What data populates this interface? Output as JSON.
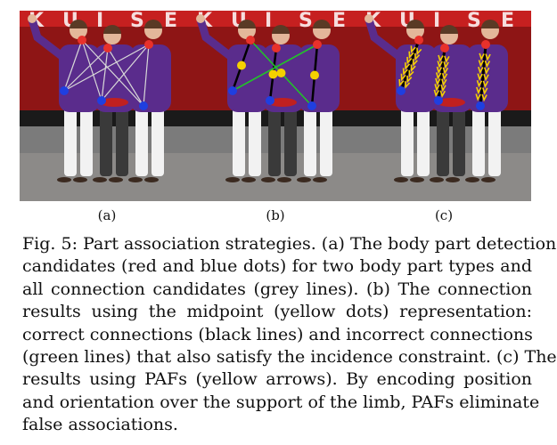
{
  "figure": {
    "panels": [
      {
        "label": "(a)",
        "mode": "all-candidates"
      },
      {
        "label": "(b)",
        "mode": "midpoint"
      },
      {
        "label": "(c)",
        "mode": "paf"
      }
    ],
    "colors": {
      "red_dot": "#e8312b",
      "blue_dot": "#1f3fe0",
      "yellow": "#f5d000",
      "grey_line": "#d8d8d8",
      "green_line": "#22c22a",
      "black_line": "#000000",
      "background_red": "#b01818",
      "shirt_purple": "#5a2c8c"
    },
    "banner_letters": "KUISE"
  },
  "caption": {
    "lines": [
      "Fig. 5: Part association strategies. (a) The body part detection",
      "candidates (red and blue dots) for two body part types and",
      "all connection candidates (grey lines). (b) The connection",
      "results using the midpoint (yellow dots) representation:",
      "correct connections (black lines) and incorrect connections",
      "(green lines) that also satisfy the incidence constraint. (c) The",
      "results using PAFs (yellow arrows). By encoding position",
      "and orientation over the support of the limb, PAFs eliminate",
      "false associations."
    ]
  }
}
